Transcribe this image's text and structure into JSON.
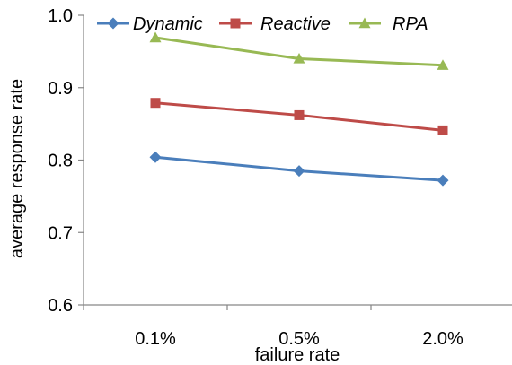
{
  "chart_data": {
    "type": "line",
    "categories": [
      "0.1%",
      "0.5%",
      "2.0%"
    ],
    "series": [
      {
        "name": "Dynamic",
        "values": [
          0.804,
          0.785,
          0.772
        ],
        "color": "#4A7EBB",
        "marker": "diamond"
      },
      {
        "name": "Reactive",
        "values": [
          0.879,
          0.862,
          0.841
        ],
        "color": "#BE4B48",
        "marker": "square"
      },
      {
        "name": "RPA",
        "values": [
          0.969,
          0.94,
          0.931
        ],
        "color": "#98B954",
        "marker": "triangle"
      }
    ],
    "xlabel": "failure rate",
    "ylabel": "average response rate",
    "ylim": [
      0.6,
      1.0
    ],
    "yticks": [
      "0.6",
      "0.7",
      "0.8",
      "0.9",
      "1.0"
    ],
    "grid": false,
    "legend": "top"
  }
}
